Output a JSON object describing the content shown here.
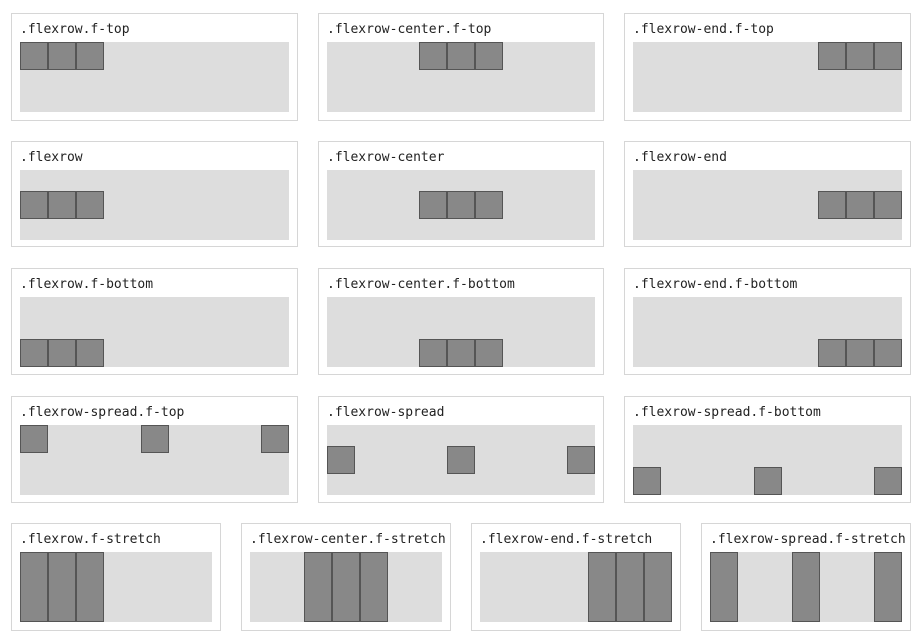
{
  "colors": {
    "area_background": "#dddddd",
    "box_fill": "#888888",
    "box_border": "#555555",
    "card_border": "#d6d6d6"
  },
  "demos": [
    {
      "label": ".flexrow.f-top"
    },
    {
      "label": ".flexrow-center.f-top"
    },
    {
      "label": ".flexrow-end.f-top"
    },
    {
      "label": ".flexrow"
    },
    {
      "label": ".flexrow-center"
    },
    {
      "label": ".flexrow-end"
    },
    {
      "label": ".flexrow.f-bottom"
    },
    {
      "label": ".flexrow-center.f-bottom"
    },
    {
      "label": ".flexrow-end.f-bottom"
    },
    {
      "label": ".flexrow-spread.f-top"
    },
    {
      "label": ".flexrow-spread"
    },
    {
      "label": ".flexrow-spread.f-bottom"
    },
    {
      "label": ".flexrow.f-stretch"
    },
    {
      "label": ".flexrow-center.f-stretch"
    },
    {
      "label": ".flexrow-end.f-stretch"
    },
    {
      "label": ".flexrow-spread.f-stretch"
    }
  ]
}
